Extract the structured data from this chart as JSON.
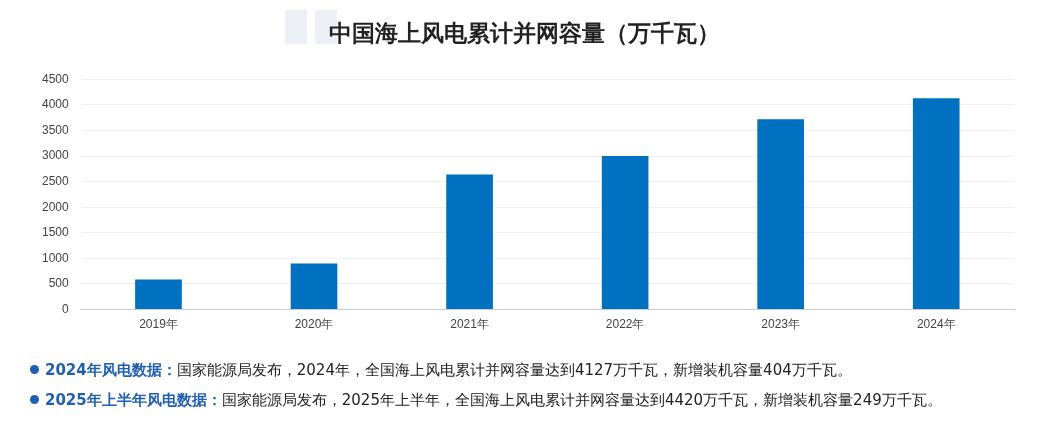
{
  "chart_data": {
    "type": "bar",
    "title": "中国海上风电累计并网容量（万千瓦）",
    "categories": [
      "2019年",
      "2020年",
      "2021年",
      "2022年",
      "2023年",
      "2024年"
    ],
    "values": [
      590,
      900,
      2640,
      3000,
      3720,
      4130
    ],
    "color": "#0070c0",
    "ylim": [
      0,
      4500
    ],
    "yticks": [
      0,
      500,
      1000,
      1500,
      2000,
      2500,
      3000,
      3500,
      4000,
      4500
    ],
    "grid": "y",
    "legend": false,
    "annotations": [
      "2024年风电数据：国家能源局发布，2024年，全国海上风电累计并网容量达到4127万千瓦，新增装机容量404万千瓦。",
      "2025年上半年风电数据：国家能源局发布，2025年上半年，全国海上风电累计并网容量达到4420万千瓦，新增装机容量249万千瓦。"
    ]
  }
}
